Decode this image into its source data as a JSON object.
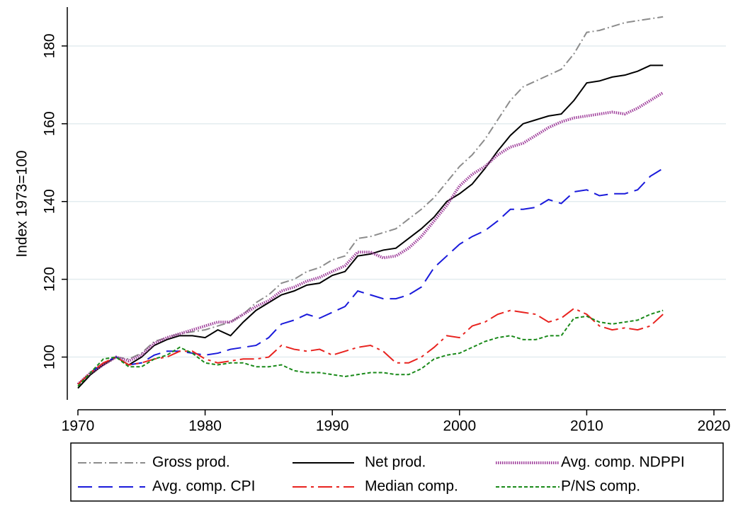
{
  "chart_data": {
    "type": "line",
    "y_label": "Index 1973=100",
    "x": [
      1970,
      1971,
      1972,
      1973,
      1974,
      1975,
      1976,
      1977,
      1978,
      1979,
      1980,
      1981,
      1982,
      1983,
      1984,
      1985,
      1986,
      1987,
      1988,
      1989,
      1990,
      1991,
      1992,
      1993,
      1994,
      1995,
      1996,
      1997,
      1998,
      1999,
      2000,
      2001,
      2002,
      2003,
      2004,
      2005,
      2006,
      2007,
      2008,
      2009,
      2010,
      2011,
      2012,
      2013,
      2014,
      2015,
      2016
    ],
    "xlim": [
      1970,
      2020
    ],
    "xticks": [
      1970,
      1980,
      1990,
      2000,
      2010,
      2020
    ],
    "ylim": [
      89,
      190
    ],
    "yticks": [
      100,
      120,
      140,
      160,
      180
    ],
    "grid": true,
    "legend": "bottom",
    "series": [
      {
        "name": "Gross prod.",
        "color": "#8c8c8c",
        "values": [
          93,
          96,
          98,
          100,
          99.5,
          101,
          104,
          105,
          106,
          106.5,
          107,
          108,
          109,
          111,
          114,
          116,
          119,
          120,
          122,
          123,
          125,
          126,
          130.5,
          131,
          132,
          133,
          135.5,
          138,
          141,
          145,
          149,
          152,
          156,
          161,
          166,
          169.5,
          171,
          172.5,
          174,
          178,
          183.5,
          184,
          185,
          186,
          186.5,
          187,
          187.5
        ]
      },
      {
        "name": "Net prod.",
        "color": "#000000",
        "values": [
          92,
          95.5,
          98,
          100,
          98,
          100,
          103,
          104.5,
          105.5,
          105.5,
          105,
          107,
          105.5,
          109,
          112,
          114,
          116,
          117,
          118.5,
          119,
          121,
          122,
          126,
          126.5,
          127.5,
          128,
          130.5,
          133,
          136,
          140,
          142,
          144.5,
          148.5,
          153,
          157,
          160,
          161,
          162,
          162.5,
          166,
          170.5,
          171,
          172,
          172.5,
          173.5,
          175,
          175
        ]
      },
      {
        "name": "Avg. comp. NDPPI",
        "color": "#a0409c",
        "values": [
          93,
          96,
          98,
          100,
          99,
          100.5,
          103.5,
          105,
          106,
          107,
          108,
          109,
          109,
          111,
          113,
          114.5,
          117,
          118,
          119.5,
          120.5,
          122,
          123.5,
          127,
          127,
          125.5,
          126,
          128,
          131,
          135,
          139,
          144,
          147,
          149,
          152,
          154,
          155,
          157,
          159,
          160.5,
          161.5,
          162,
          162.5,
          163,
          162.5,
          164,
          166,
          168
        ]
      },
      {
        "name": "Avg. comp. CPI",
        "color": "#1a1adb",
        "values": [
          93,
          96,
          98.5,
          100,
          98,
          98.5,
          100.5,
          101.5,
          101.5,
          101,
          100.5,
          101,
          102,
          102.5,
          103,
          105,
          108.5,
          109.5,
          111,
          110,
          111.5,
          113,
          117,
          116,
          115,
          115,
          116,
          118,
          123,
          126,
          129,
          131,
          132.5,
          135,
          138,
          138,
          138.5,
          140.5,
          139.5,
          142.5,
          143,
          141.5,
          142,
          142,
          143,
          146.5,
          148.5
        ]
      },
      {
        "name": "Median comp.",
        "color": "#e8231f",
        "values": [
          93,
          96,
          98.5,
          100,
          98,
          98.5,
          99.5,
          100,
          101.5,
          101.5,
          99.5,
          98.5,
          99,
          99.5,
          99.5,
          100,
          103,
          102,
          101.5,
          102,
          100.5,
          101.5,
          102.5,
          103,
          101.5,
          98.5,
          98.5,
          100,
          102.5,
          105.5,
          105,
          108,
          109,
          111,
          112,
          111.5,
          111,
          109,
          110,
          112.5,
          111,
          108,
          107,
          107.5,
          107,
          108,
          111
        ]
      },
      {
        "name": "P/NS comp.",
        "color": "#1a8a1a",
        "values": [
          92.5,
          96,
          99.5,
          100,
          97.5,
          97.5,
          99.5,
          100.5,
          102.5,
          101,
          98.5,
          98,
          98.5,
          98.5,
          97.5,
          97.5,
          98,
          96.5,
          96,
          96,
          95.5,
          95,
          95.5,
          96,
          96,
          95.5,
          95.5,
          97,
          99.5,
          100.5,
          101,
          102.5,
          104,
          105,
          105.5,
          104.5,
          104.5,
          105.5,
          105.5,
          110,
          110.5,
          109,
          108.5,
          109,
          109.5,
          111,
          112
        ]
      }
    ]
  }
}
